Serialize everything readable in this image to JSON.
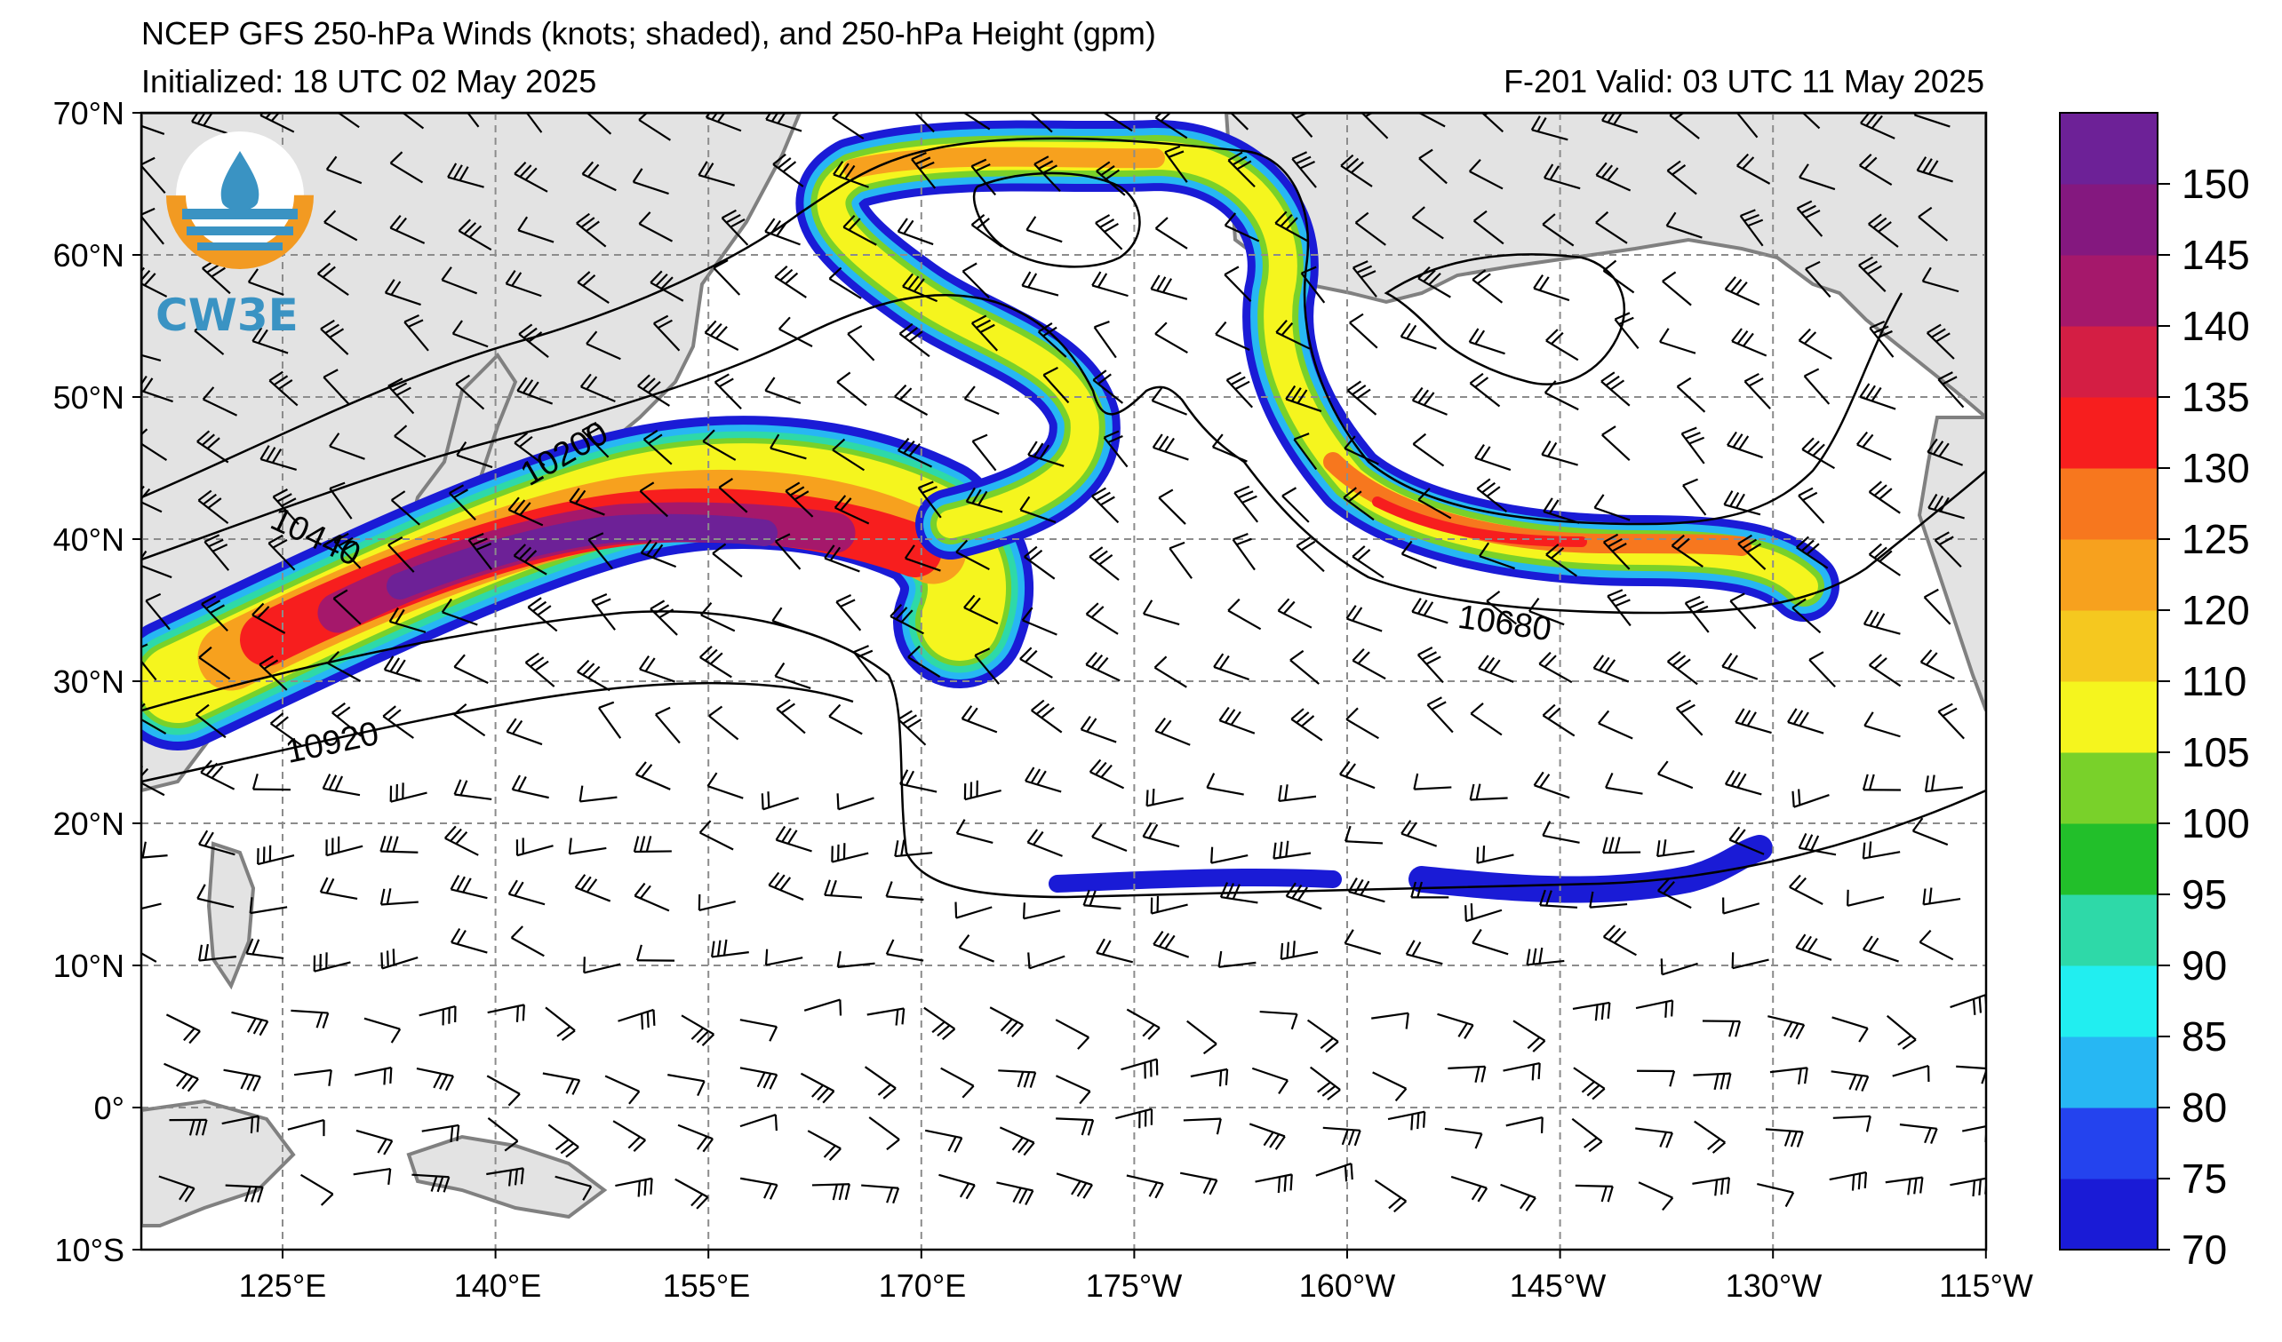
{
  "header": {
    "title": "NCEP GFS 250-hPa Winds (knots; shaded), and 250-hPa Height (gpm)",
    "initialized": "Initialized: 18 UTC 02 May 2025",
    "valid": "F-201  Valid: 03 UTC 11 May 2025"
  },
  "logo": {
    "text": "CW3E"
  },
  "axes": {
    "lat_ticks": [
      "70°N",
      "60°N",
      "50°N",
      "40°N",
      "30°N",
      "20°N",
      "10°N",
      "0°",
      "10°S"
    ],
    "lon_ticks": [
      "125°E",
      "140°E",
      "155°E",
      "170°E",
      "175°W",
      "160°W",
      "145°W",
      "130°W",
      "115°W"
    ],
    "lat_range": [
      -10,
      70
    ],
    "lon_ticks_deg": [
      125,
      140,
      155,
      170,
      185,
      200,
      215,
      230,
      245
    ]
  },
  "colorbar": {
    "labels": [
      "70",
      "75",
      "80",
      "85",
      "90",
      "95",
      "100",
      "105",
      "110",
      "120",
      "125",
      "130",
      "135",
      "140",
      "145",
      "150"
    ],
    "colors": [
      "#1a1bd6",
      "#2443ee",
      "#27b7f3",
      "#21eef0",
      "#2ed9a8",
      "#22bf2a",
      "#79d12a",
      "#f5f51e",
      "#f5c81f",
      "#f7a11e",
      "#f7771e",
      "#f71e1e",
      "#d41e44",
      "#a5186b",
      "#84187f",
      "#6d2197"
    ]
  },
  "contours": {
    "labels": [
      "10200",
      "10440",
      "10680",
      "10920"
    ]
  },
  "colors": {
    "land": "#e3e3e3",
    "coast": "#808080",
    "grid": "#8c8c8c"
  }
}
